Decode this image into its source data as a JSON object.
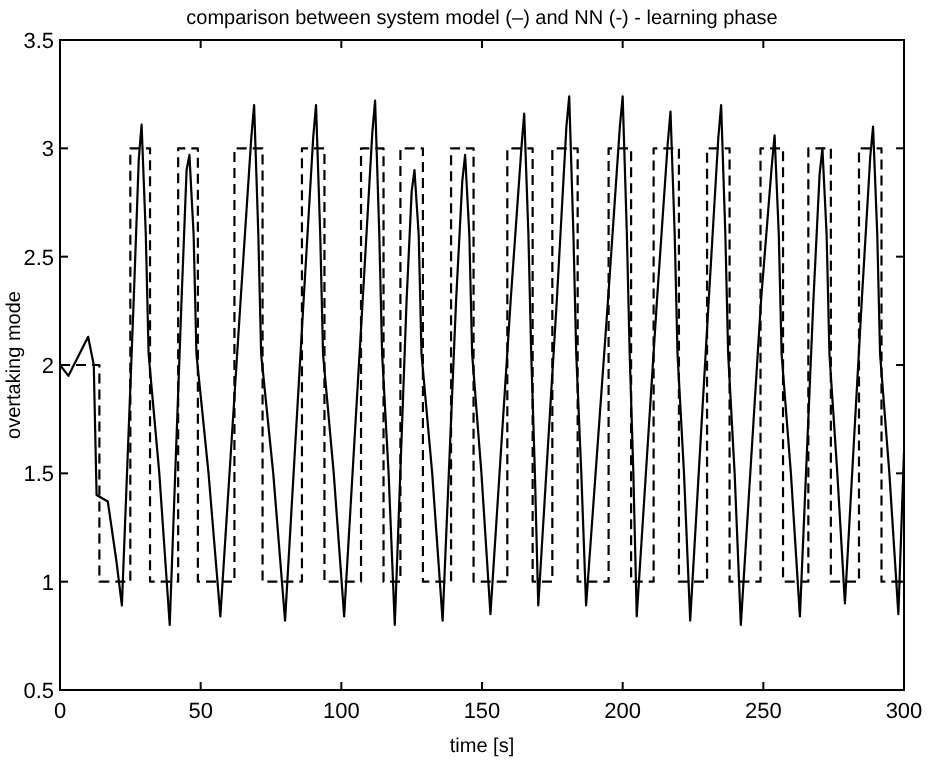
{
  "chart_data": {
    "type": "line",
    "title": "comparison between system model (–) and NN (-) - learning phase",
    "xlabel": "time [s]",
    "ylabel": "overtaking mode",
    "xlim": [
      0,
      300
    ],
    "xticks": [
      0,
      50,
      100,
      150,
      200,
      250,
      300
    ],
    "ylim": [
      0.5,
      3.5
    ],
    "yticks": [
      0.5,
      1,
      1.5,
      2,
      2.5,
      3,
      3.5
    ],
    "grid": false,
    "series": [
      {
        "type": "step",
        "color": "#000000",
        "line_style": "dashed",
        "x": [
          0,
          14,
          25,
          32,
          42,
          49,
          62,
          72,
          86,
          94,
          107,
          115,
          121,
          129,
          139,
          147,
          159,
          168,
          175,
          184,
          195,
          203,
          211,
          220,
          230,
          238,
          249,
          257,
          266,
          274,
          284,
          292,
          300
        ],
        "values": [
          2,
          1,
          3,
          1,
          3,
          1,
          3,
          1,
          3,
          1,
          3,
          1,
          3,
          1,
          3,
          1,
          3,
          1,
          3,
          1,
          3,
          1,
          3,
          1,
          3,
          1,
          3,
          1,
          3,
          1,
          3,
          1,
          1
        ]
      },
      {
        "type": "line",
        "color": "#000000",
        "line_style": "solid",
        "x": [
          0,
          3,
          10,
          12,
          13,
          17,
          20,
          22,
          26.2,
          28,
          29,
          30.5,
          31.5,
          35.3,
          39,
          43.2,
          45,
          46,
          47.5,
          48.5,
          52.8,
          57,
          64.2,
          68,
          69,
          70.5,
          71.5,
          75.8,
          80,
          86.6,
          90,
          91,
          92.5,
          93.5,
          97.3,
          101,
          107.6,
          111,
          112,
          113.5,
          114.5,
          116.8,
          119,
          123.2,
          125,
          126,
          127.5,
          128.5,
          132.3,
          136,
          140.8,
          143,
          144,
          145.5,
          146.5,
          149.8,
          153,
          160.2,
          164,
          165,
          166.5,
          167.5,
          168.8,
          170,
          176.6,
          180,
          181,
          182.5,
          183.5,
          185.3,
          187,
          194.8,
          199,
          200,
          201.5,
          202.5,
          203.8,
          205,
          212.2,
          216,
          217,
          218.5,
          219.5,
          221.8,
          224,
          230.6,
          234,
          235,
          236.5,
          237.5,
          239.8,
          242,
          249.2,
          253,
          254,
          255.5,
          256.5,
          259.8,
          263,
          267.8,
          270,
          271,
          272.5,
          273.5,
          276.3,
          279,
          285,
          288,
          289,
          290.5,
          291.5,
          294.8,
          298,
          300
        ],
        "values": [
          2.0,
          1.95,
          2.13,
          2.0,
          1.4,
          1.37,
          1.1,
          0.89,
          2.3,
          2.95,
          3.11,
          2.6,
          2.05,
          1.5,
          0.8,
          2.3,
          2.9,
          2.97,
          2.6,
          2.05,
          1.5,
          0.84,
          2.3,
          3.05,
          3.2,
          2.6,
          2.05,
          1.5,
          0.82,
          2.3,
          3.05,
          3.2,
          2.6,
          2.05,
          1.5,
          0.84,
          2.3,
          3.07,
          3.22,
          2.6,
          2.05,
          1.5,
          0.8,
          2.3,
          2.8,
          2.9,
          2.6,
          2.05,
          1.5,
          0.82,
          2.3,
          2.85,
          2.97,
          2.6,
          2.05,
          1.5,
          0.85,
          2.3,
          3.0,
          3.16,
          2.6,
          2.05,
          1.5,
          0.89,
          2.3,
          3.1,
          3.24,
          2.6,
          2.05,
          1.5,
          0.89,
          2.3,
          3.1,
          3.24,
          2.6,
          2.05,
          1.5,
          0.84,
          2.3,
          3.02,
          3.17,
          2.6,
          2.05,
          1.5,
          0.82,
          2.3,
          3.05,
          3.2,
          2.6,
          2.05,
          1.5,
          0.8,
          2.3,
          2.92,
          3.06,
          2.6,
          2.05,
          1.5,
          0.84,
          2.3,
          2.88,
          3.0,
          2.6,
          2.05,
          1.5,
          0.9,
          2.3,
          2.96,
          3.1,
          2.6,
          2.05,
          1.5,
          0.85,
          1.6
        ]
      }
    ]
  }
}
